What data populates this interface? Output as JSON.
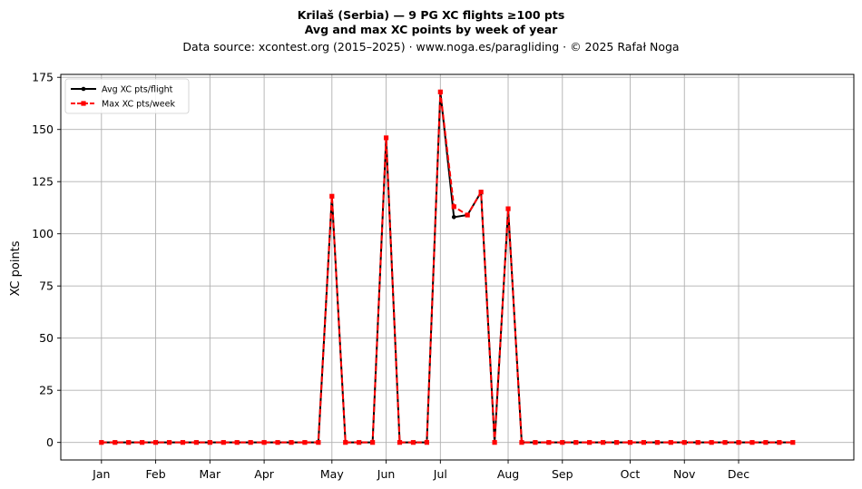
{
  "chart_data": {
    "type": "line",
    "title": "Krilaš (Serbia)  —  9 PG XC flights ≥100 pts",
    "subtitle": "Avg and max XC points by week of year",
    "source": "Data source: xcontest.org (2015–2025)  ·  www.noga.es/paragliding  ·  © 2025 Rafał Noga",
    "xlabel": "",
    "ylabel": "XC points",
    "xlim": [
      -2,
      56.5
    ],
    "ylim": [
      -8.4,
      176.4
    ],
    "yticks": [
      0,
      25,
      50,
      75,
      100,
      125,
      150,
      175
    ],
    "month_ticks": [
      {
        "label": "Jan",
        "week": 1
      },
      {
        "label": "Feb",
        "week": 5
      },
      {
        "label": "Mar",
        "week": 9
      },
      {
        "label": "Apr",
        "week": 13
      },
      {
        "label": "May",
        "week": 18
      },
      {
        "label": "Jun",
        "week": 22
      },
      {
        "label": "Jul",
        "week": 26
      },
      {
        "label": "Aug",
        "week": 31
      },
      {
        "label": "Sep",
        "week": 35
      },
      {
        "label": "Oct",
        "week": 40
      },
      {
        "label": "Nov",
        "week": 44
      },
      {
        "label": "Dec",
        "week": 48
      }
    ],
    "grid": true,
    "legend_position": "top-left",
    "x": [
      1,
      2,
      3,
      4,
      5,
      6,
      7,
      8,
      9,
      10,
      11,
      12,
      13,
      14,
      15,
      16,
      17,
      18,
      19,
      20,
      21,
      22,
      23,
      24,
      25,
      26,
      27,
      28,
      29,
      30,
      31,
      32,
      33,
      34,
      35,
      36,
      37,
      38,
      39,
      40,
      41,
      42,
      43,
      44,
      45,
      46,
      47,
      48,
      49,
      50,
      51,
      52
    ],
    "series": [
      {
        "name": "Avg XC pts/flight",
        "color": "#000000",
        "style": "solid-circle",
        "values": [
          0,
          0,
          0,
          0,
          0,
          0,
          0,
          0,
          0,
          0,
          0,
          0,
          0,
          0,
          0,
          0,
          0,
          118,
          0,
          0,
          0,
          146,
          0,
          0,
          0,
          168,
          108,
          109,
          120,
          0,
          112,
          0,
          0,
          0,
          0,
          0,
          0,
          0,
          0,
          0,
          0,
          0,
          0,
          0,
          0,
          0,
          0,
          0,
          0,
          0,
          0,
          0
        ]
      },
      {
        "name": "Max XC pts/week",
        "color": "#ff0000",
        "style": "dashed-square",
        "values": [
          0,
          0,
          0,
          0,
          0,
          0,
          0,
          0,
          0,
          0,
          0,
          0,
          0,
          0,
          0,
          0,
          0,
          118,
          0,
          0,
          0,
          146,
          0,
          0,
          0,
          168,
          113,
          109,
          120,
          0,
          112,
          0,
          0,
          0,
          0,
          0,
          0,
          0,
          0,
          0,
          0,
          0,
          0,
          0,
          0,
          0,
          0,
          0,
          0,
          0,
          0,
          0
        ]
      }
    ]
  }
}
